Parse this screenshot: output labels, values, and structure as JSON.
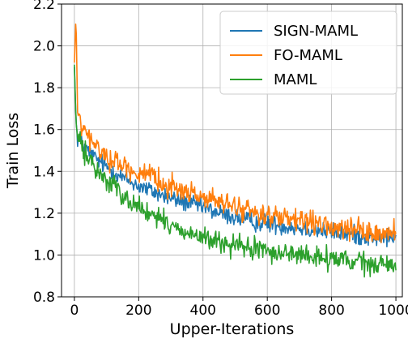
{
  "chart_data": {
    "type": "line",
    "title": "",
    "xlabel": "Upper-Iterations",
    "ylabel": "Train Loss",
    "xlim": [
      -40,
      1020
    ],
    "ylim": [
      0.8,
      2.2
    ],
    "x_ticks": [
      0,
      200,
      400,
      600,
      800,
      1000
    ],
    "x_tick_labels": [
      "0",
      "200",
      "400",
      "600",
      "800",
      "1000"
    ],
    "y_ticks": [
      0.8,
      1.0,
      1.2,
      1.4,
      1.6,
      1.8,
      2.0,
      2.2
    ],
    "y_tick_labels": [
      "0.8",
      "1.0",
      "1.2",
      "1.4",
      "1.6",
      "1.8",
      "2.0",
      "2.2"
    ],
    "grid": true,
    "legend_position": "top-right",
    "series": [
      {
        "name": "SIGN-MAML",
        "color": "#1f77b4",
        "x": [
          0,
          5,
          10,
          20,
          40,
          60,
          100,
          150,
          200,
          250,
          300,
          350,
          400,
          450,
          500,
          550,
          600,
          650,
          700,
          750,
          800,
          850,
          900,
          950,
          1000
        ],
        "values": [
          1.9,
          1.64,
          1.56,
          1.54,
          1.5,
          1.47,
          1.42,
          1.37,
          1.33,
          1.3,
          1.27,
          1.25,
          1.23,
          1.2,
          1.18,
          1.16,
          1.15,
          1.14,
          1.13,
          1.12,
          1.11,
          1.1,
          1.09,
          1.08,
          1.09
        ]
      },
      {
        "name": "FO-MAML",
        "color": "#ff7f0e",
        "x": [
          0,
          5,
          10,
          20,
          40,
          60,
          100,
          150,
          200,
          250,
          300,
          350,
          400,
          450,
          500,
          550,
          600,
          650,
          700,
          750,
          800,
          850,
          900,
          950,
          1000
        ],
        "values": [
          1.92,
          2.15,
          1.68,
          1.62,
          1.57,
          1.53,
          1.47,
          1.43,
          1.39,
          1.36,
          1.33,
          1.3,
          1.28,
          1.25,
          1.23,
          1.21,
          1.19,
          1.17,
          1.16,
          1.15,
          1.13,
          1.12,
          1.11,
          1.1,
          1.11
        ]
      },
      {
        "name": "MAML",
        "color": "#2ca02c",
        "x": [
          0,
          5,
          10,
          20,
          40,
          60,
          100,
          150,
          200,
          250,
          300,
          350,
          400,
          450,
          500,
          550,
          600,
          650,
          700,
          750,
          800,
          850,
          900,
          950,
          1000
        ],
        "values": [
          1.91,
          1.64,
          1.56,
          1.53,
          1.47,
          1.42,
          1.36,
          1.29,
          1.23,
          1.18,
          1.14,
          1.11,
          1.08,
          1.06,
          1.04,
          1.03,
          1.02,
          1.01,
          1.0,
          0.99,
          0.98,
          0.97,
          0.96,
          0.95,
          0.95
        ]
      }
    ]
  }
}
